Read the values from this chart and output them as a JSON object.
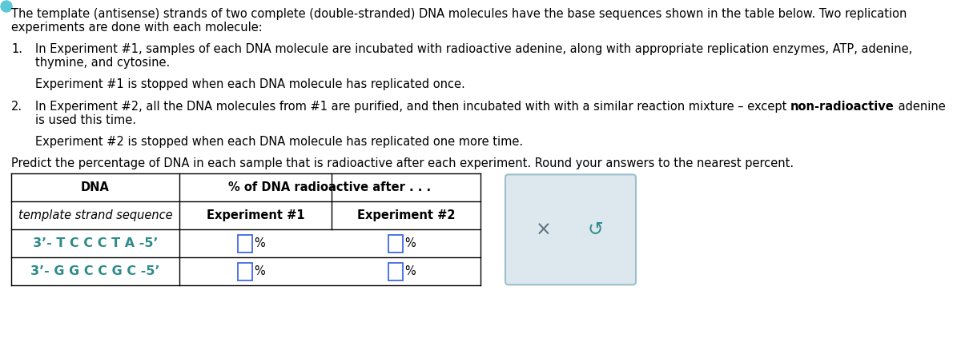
{
  "bg_color": "#ffffff",
  "teal_color": "#2E8B8B",
  "box_bg": "#dce8ed",
  "box_border": "#9bbfcc",
  "body_fs": 10.5,
  "table_fs": 10.5,
  "seq_fs": 11.5,
  "lines": [
    "The template (antisense) strands of two complete (double-stranded) DNA molecules have the base sequences shown in the table below. Two replication",
    "experiments are done with each molecule:"
  ],
  "item1_num": "1.",
  "item1_lines": [
    "In Experiment #1, samples of each DNA molecule are incubated with radioactive adenine, along with appropriate replication enzymes, ATP, adenine,",
    "thymine, and cytosine."
  ],
  "item1_stop": "Experiment #1 is stopped when each DNA molecule has replicated once.",
  "item2_num": "2.",
  "item2_pre": "In Experiment #2, all the DNA molecules from #1 are purified, and then incubated with with a similar reaction mixture – except ",
  "item2_bold": "non-radioactive",
  "item2_post": " adenine",
  "item2_line2": "is used this time.",
  "item2_stop": "Experiment #2 is stopped when each DNA molecule has replicated one more time.",
  "predict": "Predict the percentage of DNA in each sample that is radioactive after each experiment. Round your answers to the nearest percent.",
  "col1_header": "DNA",
  "col1_sub": "template strand sequence",
  "col23_header": "% of DNA radioactive after . . .",
  "col2_sub": "Experiment #1",
  "col3_sub": "Experiment #2",
  "row1_seq": "3’- T C C C T A -5’",
  "row2_seq": "3’- G G C C G C -5’",
  "row1_seq_pre": "3’-",
  "row1_seq_mid": " T C C C T A ",
  "row1_seq_suf": "-5’",
  "row2_seq_pre": "3’-",
  "row2_seq_mid": " G G C C G C ",
  "row2_seq_suf": "-5’"
}
